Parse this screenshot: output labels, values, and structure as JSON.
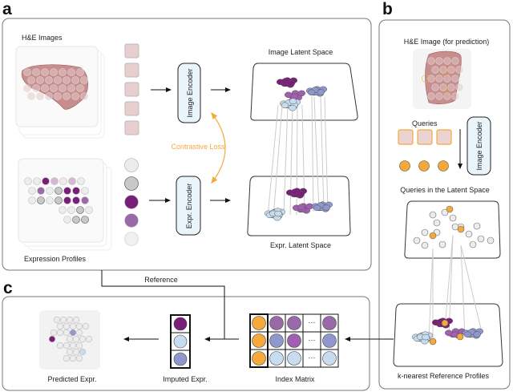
{
  "panels": {
    "a": "a",
    "b": "b",
    "c": "c"
  },
  "panel_a": {
    "he_images": "H&E Images",
    "expression_profiles": "Expression Profiles",
    "image_encoder": "Image Encoder",
    "expr_encoder": "Expr. Encoder",
    "contrastive_loss": "Contrastive Loss",
    "image_latent_space": "Image Latent Space",
    "expr_latent_space": "Expr. Latent Space"
  },
  "panel_b": {
    "he_image_prediction": "H&E Image (for prediction)",
    "queries": "Queries",
    "image_encoder": "Image Encoder",
    "queries_latent_space": "Queries in the Latent Space",
    "knn_reference": "k-nearest Reference Profiles"
  },
  "panel_c": {
    "reference": "Reference",
    "predicted_expr": "Predicted Expr.",
    "imputed_expr": "Imputed Expr.",
    "index_matrix": "Index Matrix",
    "ellipsis": "···"
  },
  "colors": {
    "dark_purple": "#7a1f78",
    "purple": "#9a6aa8",
    "mid_purple": "#a15fb0",
    "lavender": "#8f97cc",
    "light_blue": "#c8dcef",
    "gray": "#c8c8c8",
    "light_gray": "#ececec",
    "orange": "#f5a93a",
    "encoder_fill": "#eaf4fb",
    "tissue": "#c88d8d"
  }
}
